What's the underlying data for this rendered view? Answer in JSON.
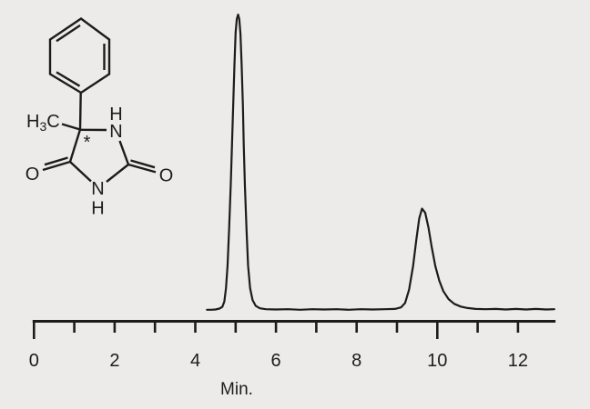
{
  "colors": {
    "background": "#ECEBE9",
    "ink": "#1C1C1C"
  },
  "structure": {
    "atom_labels": {
      "methyl_h": "H",
      "methyl_sub": "3",
      "methyl_c": "C",
      "n1_h": "H",
      "n1": "N",
      "o_right": "O",
      "n3": "N",
      "n3_h": "H",
      "o_left": "O",
      "stereocenter": "*"
    }
  },
  "chart_data": {
    "type": "line",
    "title": "",
    "xlabel": "Min.",
    "ylabel": "",
    "grid": false,
    "legend": false,
    "xlim": [
      0,
      12.93
    ],
    "x_ticks": [
      0,
      1,
      2,
      3,
      4,
      5,
      6,
      7,
      8,
      9,
      10,
      11,
      12
    ],
    "x_long_ticks": [
      0,
      10
    ],
    "x_tick_labels": [
      0,
      2,
      4,
      6,
      8,
      10,
      12
    ],
    "peaks": [
      {
        "retention_time_min": 5.06,
        "relative_height": 1.0
      },
      {
        "retention_time_min": 9.62,
        "relative_height": 0.34
      }
    ],
    "trace_points": [
      [
        4.29,
        0.002
      ],
      [
        4.4,
        0.002
      ],
      [
        4.5,
        0.003
      ],
      [
        4.6,
        0.006
      ],
      [
        4.67,
        0.012
      ],
      [
        4.72,
        0.03
      ],
      [
        4.76,
        0.075
      ],
      [
        4.8,
        0.15
      ],
      [
        4.84,
        0.28
      ],
      [
        4.88,
        0.43
      ],
      [
        4.91,
        0.56
      ],
      [
        4.94,
        0.69
      ],
      [
        4.97,
        0.83
      ],
      [
        5.0,
        0.94
      ],
      [
        5.03,
        0.985
      ],
      [
        5.06,
        1.0
      ],
      [
        5.09,
        0.985
      ],
      [
        5.12,
        0.935
      ],
      [
        5.15,
        0.83
      ],
      [
        5.18,
        0.69
      ],
      [
        5.2,
        0.56
      ],
      [
        5.23,
        0.42
      ],
      [
        5.27,
        0.27
      ],
      [
        5.31,
        0.15
      ],
      [
        5.36,
        0.075
      ],
      [
        5.42,
        0.035
      ],
      [
        5.5,
        0.015
      ],
      [
        5.6,
        0.007
      ],
      [
        5.75,
        0.004
      ],
      [
        6.0,
        0.003
      ],
      [
        6.3,
        0.004
      ],
      [
        6.6,
        0.002
      ],
      [
        6.9,
        0.004
      ],
      [
        7.2,
        0.003
      ],
      [
        7.5,
        0.004
      ],
      [
        7.8,
        0.002
      ],
      [
        8.1,
        0.004
      ],
      [
        8.4,
        0.003
      ],
      [
        8.7,
        0.004
      ],
      [
        8.95,
        0.005
      ],
      [
        9.1,
        0.01
      ],
      [
        9.2,
        0.025
      ],
      [
        9.3,
        0.07
      ],
      [
        9.4,
        0.15
      ],
      [
        9.48,
        0.24
      ],
      [
        9.55,
        0.31
      ],
      [
        9.62,
        0.344
      ],
      [
        9.7,
        0.33
      ],
      [
        9.78,
        0.28
      ],
      [
        9.86,
        0.215
      ],
      [
        9.95,
        0.15
      ],
      [
        10.05,
        0.1
      ],
      [
        10.15,
        0.065
      ],
      [
        10.28,
        0.038
      ],
      [
        10.42,
        0.022
      ],
      [
        10.58,
        0.013
      ],
      [
        10.75,
        0.008
      ],
      [
        10.95,
        0.005
      ],
      [
        11.2,
        0.004
      ],
      [
        11.45,
        0.005
      ],
      [
        11.7,
        0.003
      ],
      [
        11.95,
        0.005
      ],
      [
        12.2,
        0.003
      ],
      [
        12.45,
        0.005
      ],
      [
        12.7,
        0.003
      ],
      [
        12.9,
        0.004
      ]
    ]
  }
}
